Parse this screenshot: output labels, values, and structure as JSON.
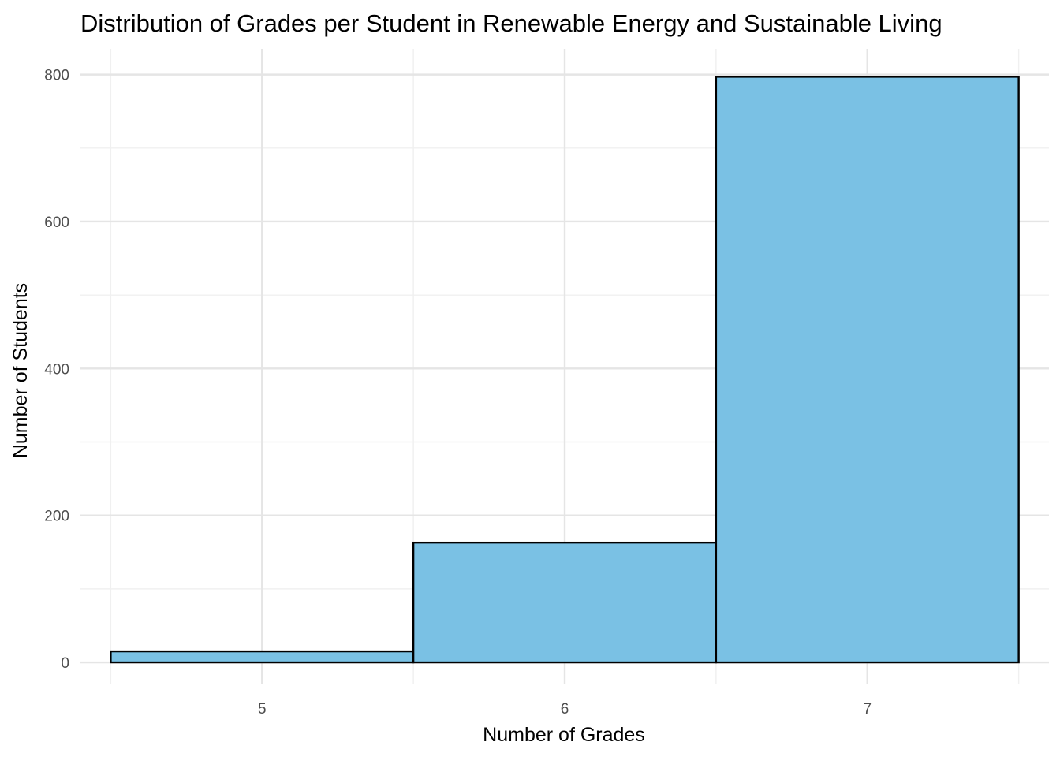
{
  "chart_data": {
    "type": "bar",
    "subtype": "histogram",
    "title": "Distribution of Grades per Student in Renewable Energy and Sustainable Living",
    "xlabel": "Number of Grades",
    "ylabel": "Number of Students",
    "bins": [
      {
        "x0": 4.5,
        "x1": 5.5,
        "count": 15
      },
      {
        "x0": 5.5,
        "x1": 6.5,
        "count": 163
      },
      {
        "x0": 6.5,
        "x1": 7.5,
        "count": 797
      }
    ],
    "x_ticks": [
      5,
      6,
      7
    ],
    "y_ticks": [
      0,
      200,
      400,
      600,
      800
    ],
    "xlim": [
      4.4,
      7.6
    ],
    "ylim": [
      -30,
      835
    ],
    "grid": true,
    "legend": "none",
    "colors": {
      "bar_fill": "#7AC1E4",
      "bar_stroke": "#000000",
      "grid_major": "#e5e5e5",
      "grid_minor": "#f0f0f0"
    }
  }
}
